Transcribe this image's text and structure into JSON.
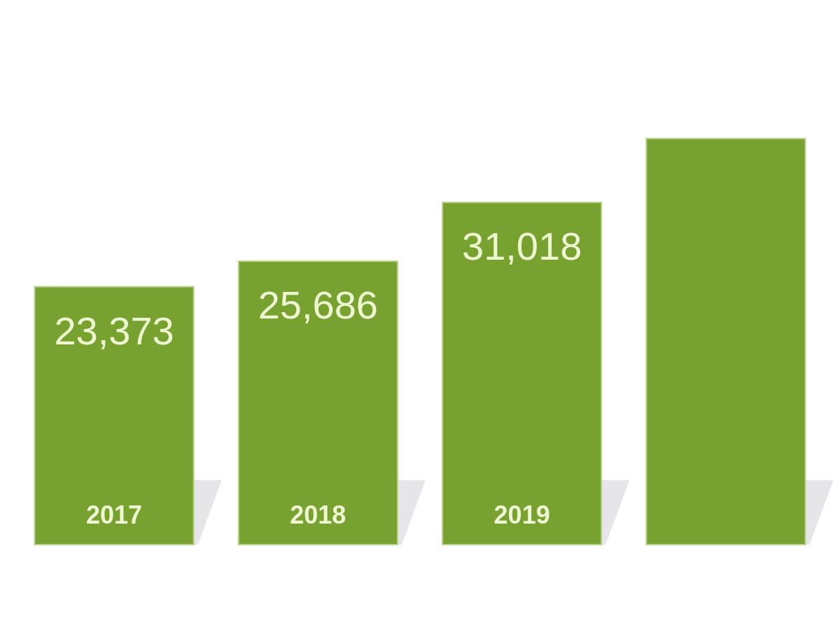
{
  "chart_data": {
    "type": "bar",
    "categories": [
      "2017",
      "2018",
      "2019",
      null
    ],
    "values": [
      23373,
      25686,
      31018,
      36800
    ],
    "color": "#78a22f",
    "value_labels": [
      "23,373",
      "25,686",
      "31,018",
      null
    ]
  }
}
